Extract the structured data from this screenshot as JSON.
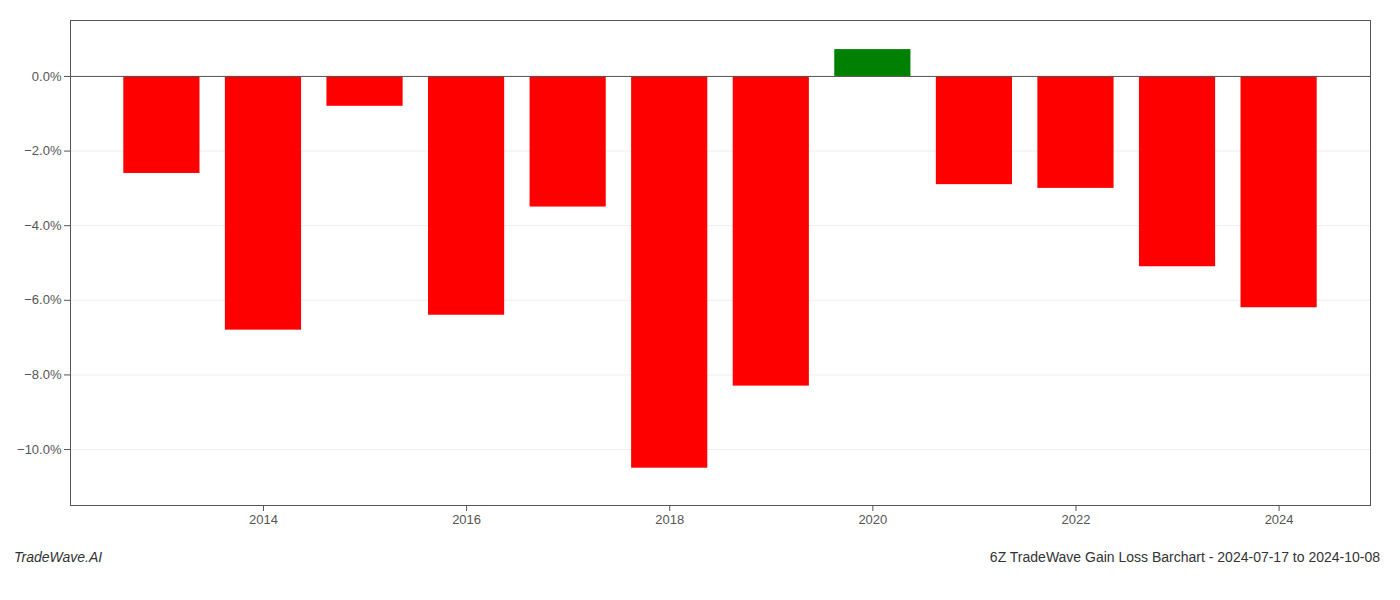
{
  "chart_data": {
    "type": "bar",
    "title": "6Z TradeWave Gain Loss Barchart - 2024-07-17 to 2024-10-08",
    "annotations": [
      "TradeWave.AI"
    ],
    "x": [
      2013,
      2014,
      2015,
      2016,
      2017,
      2018,
      2019,
      2020,
      2021,
      2022,
      2023,
      2024
    ],
    "values": [
      -2.6,
      -6.8,
      -0.8,
      -6.4,
      -3.5,
      -10.5,
      -8.3,
      0.72,
      -2.9,
      -3.0,
      -5.1,
      -6.2
    ],
    "colors": [
      "#ff0000",
      "#ff0000",
      "#ff0000",
      "#ff0000",
      "#ff0000",
      "#ff0000",
      "#ff0000",
      "#008000",
      "#ff0000",
      "#ff0000",
      "#ff0000",
      "#ff0000"
    ],
    "xlim": [
      2012.1,
      2024.9
    ],
    "xticks": [
      2014,
      2016,
      2018,
      2020,
      2022,
      2024
    ],
    "ylim": [
      -11.5,
      1.5
    ],
    "yticks": [
      {
        "value": 0.0,
        "label": "0.0%"
      },
      {
        "value": -2.0,
        "label": "−2.0%"
      },
      {
        "value": -4.0,
        "label": "−4.0%"
      },
      {
        "value": -6.0,
        "label": "−6.0%"
      },
      {
        "value": -8.0,
        "label": "−8.0%"
      },
      {
        "value": -10.0,
        "label": "−10.0%"
      }
    ],
    "grid": true
  }
}
